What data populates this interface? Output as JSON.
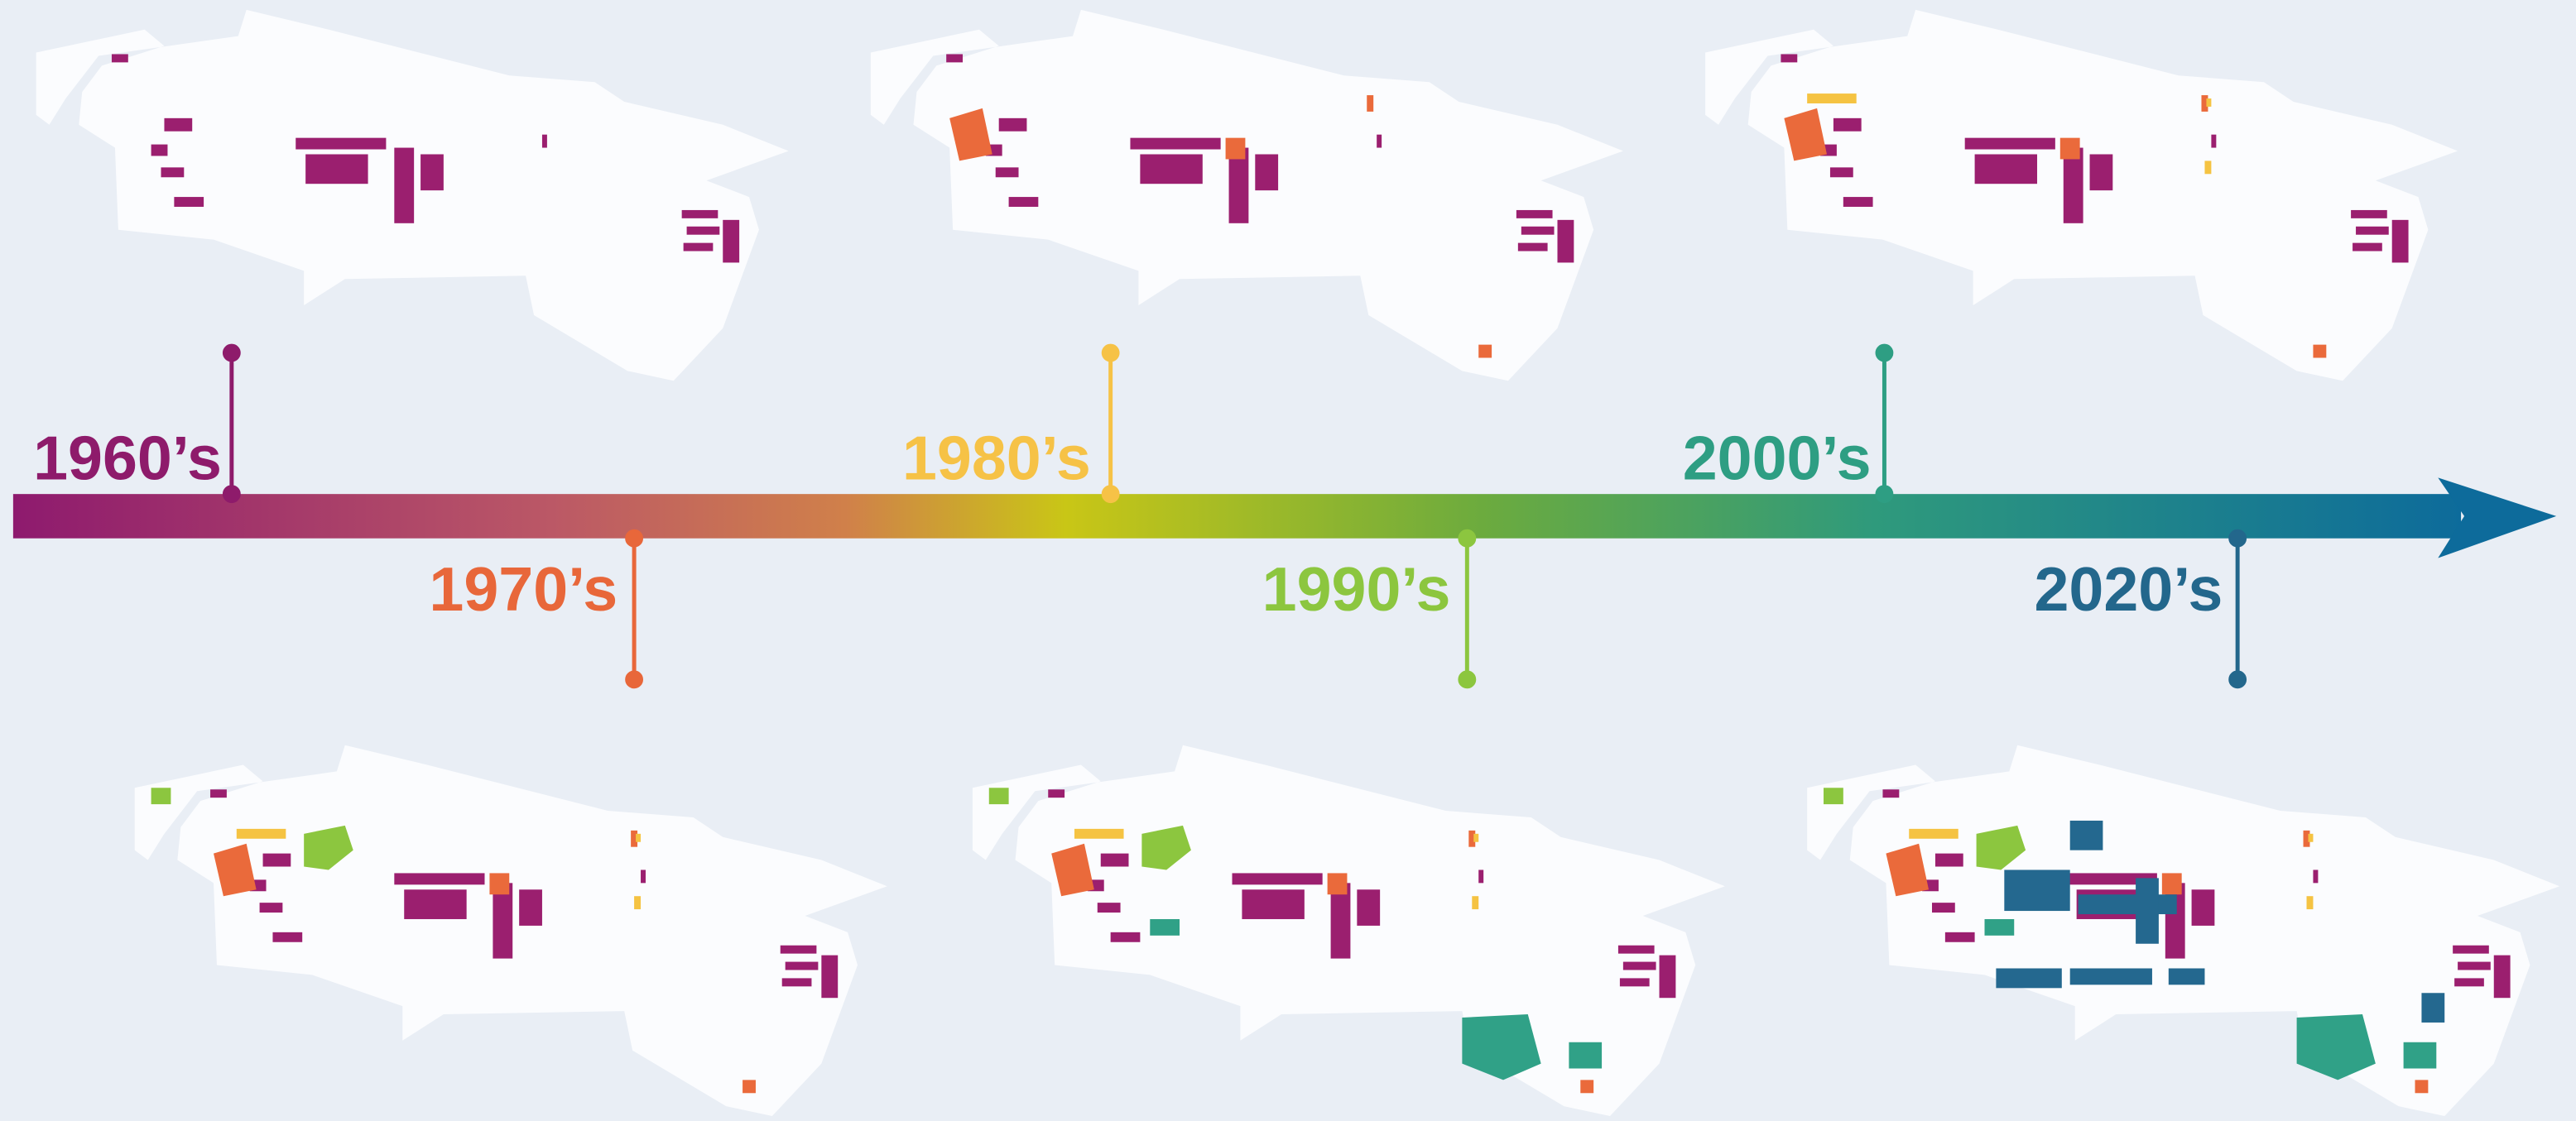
{
  "timeline": {
    "labels": [
      "1960’s",
      "1970’s",
      "1980’s",
      "1990’s",
      "2000’s",
      "2020’s"
    ]
  }
}
